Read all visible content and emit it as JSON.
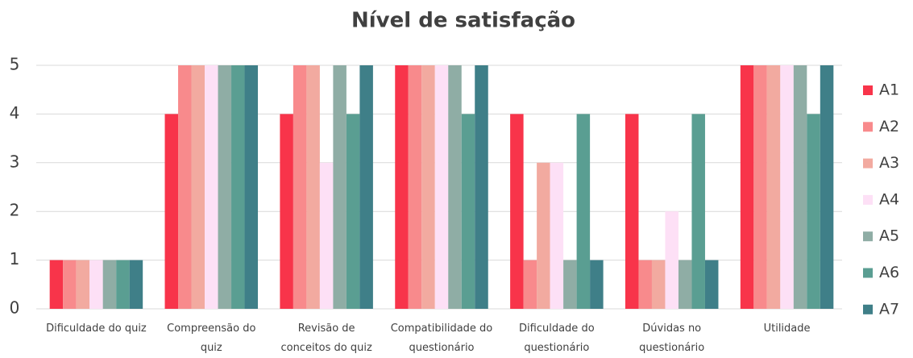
{
  "chart_data": {
    "type": "bar",
    "title": "Nível de satisfação",
    "categories": [
      "Dificuldade do quiz",
      "Compreensão do quiz",
      "Revisão de conceitos do quiz",
      "Compatibilidade do questionário",
      "Dificuldade do questionário",
      "Dúvidas no questionário",
      "Utilidade"
    ],
    "series": [
      {
        "name": "A1",
        "color": "#f8344a",
        "values": [
          1,
          4,
          4,
          5,
          4,
          4,
          5
        ]
      },
      {
        "name": "A2",
        "color": "#f88a8c",
        "values": [
          1,
          5,
          5,
          5,
          1,
          1,
          5
        ]
      },
      {
        "name": "A3",
        "color": "#f2aaa0",
        "values": [
          1,
          5,
          5,
          5,
          3,
          1,
          5
        ]
      },
      {
        "name": "A4",
        "color": "#fde0f6",
        "values": [
          1,
          5,
          3,
          5,
          3,
          2,
          5
        ]
      },
      {
        "name": "A5",
        "color": "#8fada5",
        "values": [
          1,
          5,
          5,
          5,
          1,
          1,
          5
        ]
      },
      {
        "name": "A6",
        "color": "#5a9e92",
        "values": [
          1,
          5,
          4,
          4,
          4,
          4,
          4
        ]
      },
      {
        "name": "A7",
        "color": "#3f7f88",
        "values": [
          1,
          5,
          5,
          5,
          1,
          1,
          5
        ]
      }
    ],
    "ylim": [
      0,
      5
    ],
    "yticks": [
      0,
      1,
      2,
      3,
      4,
      5
    ],
    "grid": true,
    "legend": "right"
  }
}
